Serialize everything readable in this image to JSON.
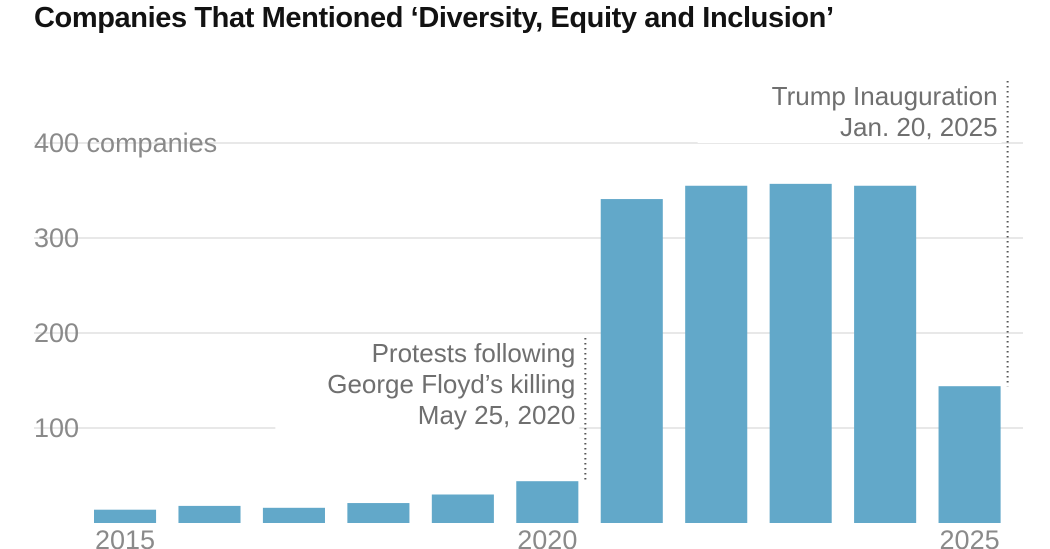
{
  "title": "Companies That Mentioned ‘Diversity, Equity and Inclusion’",
  "chart_data": {
    "type": "bar",
    "title": "Companies That Mentioned ‘Diversity, Equity and Inclusion’",
    "categories": [
      "2015",
      "2016",
      "2017",
      "2018",
      "2019",
      "2020",
      "2021",
      "2022",
      "2023",
      "2024",
      "2025"
    ],
    "values": [
      14,
      18,
      16,
      21,
      30,
      44,
      341,
      355,
      357,
      355,
      144
    ],
    "ylim": [
      0,
      400
    ],
    "grid": true,
    "bar_color": "#62a8c9",
    "y_ticks": [
      {
        "value": 100,
        "label": "100"
      },
      {
        "value": 200,
        "label": "200"
      },
      {
        "value": 300,
        "label": "300"
      },
      {
        "value": 400,
        "label": "400 companies"
      }
    ],
    "x_ticks": [
      {
        "index": 0,
        "label": "2015"
      },
      {
        "index": 5,
        "label": "2020"
      },
      {
        "index": 10,
        "label": "2025"
      }
    ],
    "annotations": [
      {
        "index": 5,
        "lines": [
          "Protests following",
          "George Floyd’s killing",
          "May 25, 2020"
        ]
      },
      {
        "index": 10,
        "lines": [
          "Trump Inauguration",
          "Jan. 20, 2025"
        ]
      }
    ]
  }
}
